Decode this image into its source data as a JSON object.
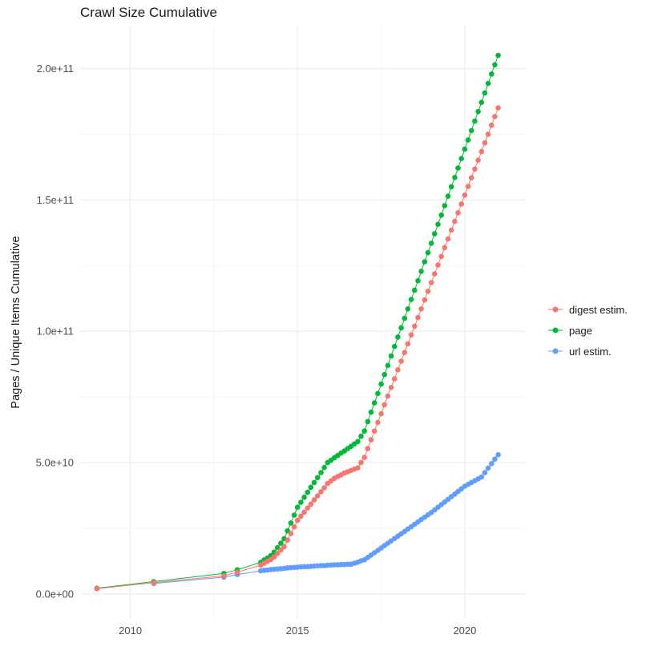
{
  "chart_data": {
    "type": "scatter",
    "title": "Crawl Size Cumulative",
    "xlabel": "",
    "ylabel": "Pages / Unique Items Cumulative",
    "legend_position": "right",
    "grid": true,
    "x_range": [
      2008.5,
      2021.8
    ],
    "y_range_e9": [
      -9.5,
      216
    ],
    "y_values_unit": "1e9",
    "x_ticks": [
      2010,
      2015,
      2020
    ],
    "x_tick_labels": [
      "2010",
      "2015",
      "2020"
    ],
    "x_minor_ticks": [
      2012.5,
      2017.5
    ],
    "y_ticks_e9": [
      0,
      50,
      100,
      150,
      200
    ],
    "y_tick_labels": [
      "0.0e+00",
      "5.0e+10",
      "1.0e+11",
      "1.5e+11",
      "2.0e+11"
    ],
    "y_minor_ticks_e9": [
      25,
      75,
      125,
      175
    ],
    "style": {
      "panel_bg": "#ffffff",
      "grid_major": "#ebebeb",
      "grid_minor": "#f2f2f2",
      "tick_text": "#4d4d4d",
      "title_text": "#1a1a1a"
    },
    "series": [
      {
        "id": "digest-estim",
        "name": "digest estim.",
        "color": "#F8766D",
        "points": [
          [
            2009.0,
            2.0
          ],
          [
            2010.7,
            4.3
          ],
          [
            2012.8,
            6.9
          ],
          [
            2013.2,
            8.3
          ],
          [
            2013.9,
            11
          ],
          [
            2014.0,
            11.7
          ],
          [
            2014.1,
            12.4
          ],
          [
            2014.2,
            13.1
          ],
          [
            2014.3,
            14.1
          ],
          [
            2014.4,
            15.4
          ],
          [
            2014.5,
            16.7
          ],
          [
            2014.6,
            18
          ],
          [
            2014.7,
            20.5
          ],
          [
            2014.8,
            23
          ],
          [
            2014.9,
            25.5
          ],
          [
            2015.0,
            28
          ],
          [
            2015.1,
            29.6
          ],
          [
            2015.2,
            31.1
          ],
          [
            2015.3,
            32.7
          ],
          [
            2015.4,
            34.2
          ],
          [
            2015.5,
            35.8
          ],
          [
            2015.6,
            37.3
          ],
          [
            2015.7,
            38.9
          ],
          [
            2015.8,
            40.4
          ],
          [
            2015.9,
            42
          ],
          [
            2016.0,
            43
          ],
          [
            2016.1,
            44
          ],
          [
            2016.2,
            44.7
          ],
          [
            2016.3,
            45.3
          ],
          [
            2016.4,
            46
          ],
          [
            2016.5,
            46.5
          ],
          [
            2016.6,
            47
          ],
          [
            2016.7,
            47.5
          ],
          [
            2016.8,
            48
          ],
          [
            2016.9,
            50
          ],
          [
            2017.0,
            52
          ],
          [
            2017.1,
            55.3
          ],
          [
            2017.2,
            58.7
          ],
          [
            2017.3,
            62
          ],
          [
            2017.4,
            65.3
          ],
          [
            2017.5,
            68.6
          ],
          [
            2017.6,
            72
          ],
          [
            2017.7,
            75.3
          ],
          [
            2017.8,
            78.6
          ],
          [
            2017.9,
            81.9
          ],
          [
            2018.0,
            85.3
          ],
          [
            2018.1,
            88.6
          ],
          [
            2018.2,
            91.9
          ],
          [
            2018.3,
            95.2
          ],
          [
            2018.4,
            98.6
          ],
          [
            2018.5,
            101.9
          ],
          [
            2018.6,
            105.2
          ],
          [
            2018.7,
            108.5
          ],
          [
            2018.8,
            111.9
          ],
          [
            2018.9,
            115.2
          ],
          [
            2019.0,
            118.5
          ],
          [
            2019.1,
            121.8
          ],
          [
            2019.2,
            125.2
          ],
          [
            2019.3,
            128.5
          ],
          [
            2019.4,
            131.8
          ],
          [
            2019.5,
            135.1
          ],
          [
            2019.6,
            138.5
          ],
          [
            2019.7,
            141.8
          ],
          [
            2019.8,
            145.1
          ],
          [
            2019.9,
            148.4
          ],
          [
            2020.0,
            151.8
          ],
          [
            2020.1,
            155.1
          ],
          [
            2020.2,
            158.4
          ],
          [
            2020.3,
            161.7
          ],
          [
            2020.4,
            165.1
          ],
          [
            2020.5,
            168.4
          ],
          [
            2020.6,
            171.7
          ],
          [
            2020.7,
            175
          ],
          [
            2020.8,
            178.4
          ],
          [
            2020.9,
            181.7
          ],
          [
            2021.0,
            185
          ]
        ]
      },
      {
        "id": "page",
        "name": "page",
        "color": "#00BA38",
        "points": [
          [
            2009.0,
            2.2
          ],
          [
            2010.7,
            4.7
          ],
          [
            2012.8,
            7.8
          ],
          [
            2013.2,
            9.2
          ],
          [
            2013.9,
            12
          ],
          [
            2014.0,
            12.9
          ],
          [
            2014.1,
            13.7
          ],
          [
            2014.2,
            14.6
          ],
          [
            2014.3,
            15.9
          ],
          [
            2014.4,
            17.6
          ],
          [
            2014.5,
            19.3
          ],
          [
            2014.6,
            21
          ],
          [
            2014.7,
            24
          ],
          [
            2014.8,
            27
          ],
          [
            2014.9,
            30
          ],
          [
            2015.0,
            33
          ],
          [
            2015.1,
            34.9
          ],
          [
            2015.2,
            36.8
          ],
          [
            2015.3,
            38.7
          ],
          [
            2015.4,
            40.6
          ],
          [
            2015.5,
            42.4
          ],
          [
            2015.6,
            44.3
          ],
          [
            2015.7,
            46.2
          ],
          [
            2015.8,
            48.1
          ],
          [
            2015.9,
            50
          ],
          [
            2016.0,
            50.9
          ],
          [
            2016.1,
            51.8
          ],
          [
            2016.2,
            52.7
          ],
          [
            2016.3,
            53.6
          ],
          [
            2016.4,
            54.4
          ],
          [
            2016.5,
            55.3
          ],
          [
            2016.6,
            56.2
          ],
          [
            2016.7,
            57.1
          ],
          [
            2016.8,
            58
          ],
          [
            2016.9,
            60
          ],
          [
            2017.0,
            62
          ],
          [
            2017.1,
            65.6
          ],
          [
            2017.2,
            69.2
          ],
          [
            2017.3,
            72.7
          ],
          [
            2017.4,
            76.3
          ],
          [
            2017.5,
            79.9
          ],
          [
            2017.6,
            83.5
          ],
          [
            2017.7,
            87
          ],
          [
            2017.8,
            90.6
          ],
          [
            2017.9,
            94.2
          ],
          [
            2018.0,
            97.8
          ],
          [
            2018.1,
            101.3
          ],
          [
            2018.2,
            104.9
          ],
          [
            2018.3,
            108.5
          ],
          [
            2018.4,
            112.1
          ],
          [
            2018.5,
            115.6
          ],
          [
            2018.6,
            119.2
          ],
          [
            2018.7,
            122.8
          ],
          [
            2018.8,
            126.4
          ],
          [
            2018.9,
            129.9
          ],
          [
            2019.0,
            133.5
          ],
          [
            2019.1,
            137.1
          ],
          [
            2019.2,
            140.7
          ],
          [
            2019.3,
            144.2
          ],
          [
            2019.4,
            147.8
          ],
          [
            2019.5,
            151.4
          ],
          [
            2019.6,
            155
          ],
          [
            2019.7,
            158.5
          ],
          [
            2019.8,
            162.1
          ],
          [
            2019.9,
            165.7
          ],
          [
            2020.0,
            169.3
          ],
          [
            2020.1,
            172.8
          ],
          [
            2020.2,
            176.4
          ],
          [
            2020.3,
            180
          ],
          [
            2020.4,
            183.6
          ],
          [
            2020.5,
            187.1
          ],
          [
            2020.6,
            190.7
          ],
          [
            2020.7,
            194.3
          ],
          [
            2020.8,
            197.9
          ],
          [
            2020.9,
            201.4
          ],
          [
            2021.0,
            205
          ]
        ]
      },
      {
        "id": "url-estim",
        "name": "url estim.",
        "color": "#619CFF",
        "points": [
          [
            2010.7,
            4.0
          ],
          [
            2012.8,
            6.4
          ],
          [
            2013.2,
            7.4
          ],
          [
            2013.9,
            8.8
          ],
          [
            2014.0,
            9.0
          ],
          [
            2014.1,
            9.1
          ],
          [
            2014.2,
            9.3
          ],
          [
            2014.3,
            9.4
          ],
          [
            2014.4,
            9.5
          ],
          [
            2014.5,
            9.6
          ],
          [
            2014.6,
            9.7
          ],
          [
            2014.7,
            9.9
          ],
          [
            2014.8,
            10
          ],
          [
            2014.9,
            10.1
          ],
          [
            2015.0,
            10.2
          ],
          [
            2015.1,
            10.3
          ],
          [
            2015.2,
            10.4
          ],
          [
            2015.3,
            10.4
          ],
          [
            2015.4,
            10.5
          ],
          [
            2015.5,
            10.6
          ],
          [
            2015.6,
            10.7
          ],
          [
            2015.7,
            10.8
          ],
          [
            2015.8,
            10.8
          ],
          [
            2015.9,
            10.9
          ],
          [
            2016.0,
            11
          ],
          [
            2016.1,
            11.1
          ],
          [
            2016.2,
            11.1
          ],
          [
            2016.3,
            11.2
          ],
          [
            2016.4,
            11.2
          ],
          [
            2016.5,
            11.3
          ],
          [
            2016.6,
            11.3
          ],
          [
            2016.7,
            11.7
          ],
          [
            2016.8,
            12.1
          ],
          [
            2016.9,
            12.6
          ],
          [
            2017.0,
            13
          ],
          [
            2017.1,
            13.9
          ],
          [
            2017.2,
            14.8
          ],
          [
            2017.3,
            15.7
          ],
          [
            2017.4,
            16.6
          ],
          [
            2017.5,
            17.5
          ],
          [
            2017.6,
            18.4
          ],
          [
            2017.7,
            19.3
          ],
          [
            2017.8,
            20.2
          ],
          [
            2017.9,
            21.1
          ],
          [
            2018.0,
            22
          ],
          [
            2018.1,
            22.9
          ],
          [
            2018.2,
            23.8
          ],
          [
            2018.3,
            24.7
          ],
          [
            2018.4,
            25.6
          ],
          [
            2018.5,
            26.5
          ],
          [
            2018.6,
            27.4
          ],
          [
            2018.7,
            28.3
          ],
          [
            2018.8,
            29.2
          ],
          [
            2018.9,
            30.1
          ],
          [
            2019.0,
            31
          ],
          [
            2019.1,
            32
          ],
          [
            2019.2,
            33
          ],
          [
            2019.3,
            34
          ],
          [
            2019.4,
            35
          ],
          [
            2019.5,
            36
          ],
          [
            2019.6,
            37
          ],
          [
            2019.7,
            38
          ],
          [
            2019.8,
            39
          ],
          [
            2019.9,
            40
          ],
          [
            2020.0,
            41
          ],
          [
            2020.1,
            41.7
          ],
          [
            2020.2,
            42.4
          ],
          [
            2020.3,
            43.1
          ],
          [
            2020.4,
            43.8
          ],
          [
            2020.5,
            44.5
          ],
          [
            2020.6,
            46.2
          ],
          [
            2020.7,
            47.9
          ],
          [
            2020.8,
            49.6
          ],
          [
            2020.9,
            51.3
          ],
          [
            2021.0,
            53
          ]
        ]
      }
    ]
  }
}
